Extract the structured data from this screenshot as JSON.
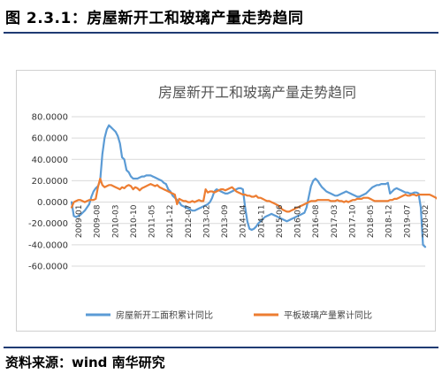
{
  "figure": {
    "caption": "图 2.3.1：房屋新开工和玻璃产量走势趋同",
    "source": "资料来源：wind 南华研究"
  },
  "chart_data": {
    "type": "line",
    "title": "房屋新开工和玻璃产量走势趋同",
    "xlabel": "",
    "ylabel": "",
    "ylim": [
      -60,
      80
    ],
    "yticks": [
      80,
      60,
      40,
      20,
      0,
      -20,
      -40,
      -60
    ],
    "ytick_labels": [
      "80.0000",
      "60.0000",
      "40.0000",
      "20.0000",
      "0.0000",
      "-20.0000",
      "-40.0000",
      "-60.0000"
    ],
    "x_start": "2009-01",
    "x_tick_labels": [
      "2009-01",
      "2009-08",
      "2010-03",
      "2010-10",
      "2011-05",
      "2011-12",
      "2012-07",
      "2013-02",
      "2013-09",
      "2014-04",
      "2014-11",
      "2015-06",
      "2016-01",
      "2016-08",
      "2017-03",
      "2017-10",
      "2018-05",
      "2018-12",
      "2019-07",
      "2020-02"
    ],
    "grid": true,
    "legend": "bottom",
    "series": [
      {
        "name": "房屋新开工面积累计同比",
        "color": "#5b9bd5",
        "values": [
          0,
          -13,
          -14,
          -13,
          -12,
          -10,
          -8,
          -5,
          -2,
          5,
          10,
          13,
          15,
          20,
          45,
          60,
          68,
          72,
          70,
          68,
          66,
          62,
          55,
          42,
          40,
          30,
          28,
          24,
          22,
          22,
          22,
          23,
          24,
          24,
          25,
          25,
          25,
          24,
          23,
          22,
          21,
          20,
          18,
          17,
          12,
          10,
          6,
          4,
          2,
          0,
          -3,
          -4,
          -5,
          -6,
          -7,
          -8,
          -8,
          -7,
          -6,
          -5,
          -4,
          -3,
          -2,
          0,
          4,
          10,
          12,
          11,
          10,
          9,
          8,
          8,
          9,
          10,
          11,
          12,
          13,
          13,
          12,
          -5,
          -18,
          -25,
          -26,
          -25,
          -23,
          -20,
          -18,
          -16,
          -14,
          -13,
          -12,
          -11,
          -12,
          -13,
          -14,
          -15,
          -16,
          -17,
          -18,
          -17,
          -16,
          -15,
          -14,
          -13,
          -12,
          -11,
          -10,
          -5,
          5,
          15,
          20,
          22,
          20,
          17,
          14,
          12,
          10,
          9,
          8,
          7,
          6,
          6,
          7,
          8,
          9,
          10,
          9,
          8,
          7,
          6,
          5,
          5,
          6,
          7,
          8,
          10,
          12,
          14,
          15,
          16,
          16,
          17,
          17,
          17,
          18,
          8,
          10,
          12,
          13,
          12,
          11,
          10,
          9,
          9,
          8,
          8,
          9,
          9,
          8,
          -5,
          -40,
          -42
        ]
      },
      {
        "name": "平板玻璃产量累计同比",
        "color": "#ed7d31",
        "values": [
          -5,
          0,
          1,
          2,
          2,
          1,
          0,
          1,
          2,
          2,
          2,
          3,
          14,
          22,
          16,
          14,
          15,
          16,
          16,
          15,
          14,
          13,
          12,
          14,
          13,
          15,
          16,
          15,
          12,
          14,
          13,
          11,
          13,
          14,
          15,
          16,
          17,
          16,
          15,
          16,
          14,
          13,
          12,
          11,
          10,
          9,
          8,
          7,
          -2,
          3,
          2,
          1,
          1,
          0,
          0,
          1,
          0,
          1,
          2,
          1,
          1,
          12,
          9,
          10,
          10,
          9,
          10,
          11,
          12,
          12,
          11,
          12,
          13,
          14,
          12,
          10,
          9,
          8,
          7,
          7,
          6,
          6,
          5,
          5,
          6,
          4,
          4,
          3,
          2,
          1,
          1,
          0,
          -1,
          -2,
          -3,
          -5,
          -7,
          -8,
          -9,
          -9,
          -8,
          -7,
          -6,
          -5,
          -4,
          -3,
          -2,
          -1,
          0,
          1,
          1,
          1,
          2,
          2,
          2,
          2,
          2,
          2,
          1,
          1,
          1,
          2,
          1,
          1,
          0,
          1,
          0,
          1,
          2,
          2,
          3,
          3,
          3,
          4,
          4,
          4,
          3,
          2,
          1,
          1,
          1,
          1,
          1,
          1,
          1,
          2,
          2,
          3,
          3,
          4,
          5,
          6,
          7,
          6,
          6,
          7,
          7,
          6,
          7,
          7,
          7,
          7,
          7,
          7,
          6,
          5,
          4,
          2
        ]
      }
    ]
  }
}
